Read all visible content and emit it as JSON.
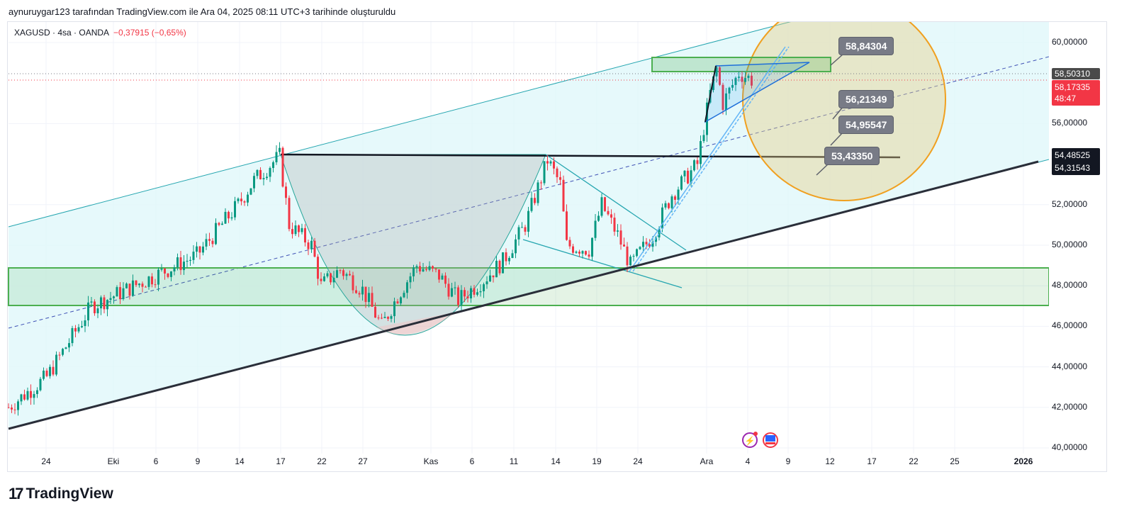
{
  "header": {
    "credit": "aynuruygar123 tarafından TradingView.com ile Ara 04, 2025 08:11 UTC+3 tarihinde oluşturuldu"
  },
  "legend": {
    "symbol": "XAGUSD · 4sa · OANDA",
    "change": "−0,37915 (−0,65%)"
  },
  "price_axis": {
    "ticks": [
      "60,00000",
      "56,00000",
      "52,00000",
      "50,00000",
      "48,00000",
      "46,00000",
      "44,00000",
      "42,00000",
      "40,00000"
    ],
    "tick_values": [
      60,
      56,
      52,
      50,
      48,
      46,
      44,
      42,
      40
    ],
    "labels": {
      "prev": "58,50310",
      "last": "58,17335",
      "countdown": "48:47",
      "line1": "54,48525",
      "line2": "54,31543"
    }
  },
  "time_axis": {
    "ticks": [
      "24",
      "Eki",
      "6",
      "9",
      "14",
      "17",
      "22",
      "27",
      "Kas",
      "6",
      "11",
      "14",
      "19",
      "24",
      "Ara",
      "4",
      "9",
      "12",
      "17",
      "22",
      "25",
      "2026"
    ]
  },
  "callouts": [
    "58,84304",
    "56,21349",
    "54,95547",
    "53,43350"
  ],
  "brand": {
    "name": "TradingView"
  },
  "colors": {
    "up": "#089981",
    "down": "#f23645",
    "channel": "#e0f7fa",
    "zone": "#4caf50",
    "circle": "#f0a020"
  },
  "chart_data": {
    "type": "candlestick",
    "symbol": "XAGUSD",
    "interval": "4h",
    "ylim": [
      40,
      60.8
    ],
    "keypoints_bar_price": [
      [
        0,
        42
      ],
      [
        12,
        43.5
      ],
      [
        26,
        47
      ],
      [
        33,
        47.5
      ],
      [
        46,
        48.5
      ],
      [
        59,
        49.5
      ],
      [
        72,
        52
      ],
      [
        77,
        53.2
      ],
      [
        85,
        54.4
      ],
      [
        88,
        51
      ],
      [
        95,
        50
      ],
      [
        98,
        48
      ],
      [
        104,
        48.8
      ],
      [
        111,
        47.8
      ],
      [
        117,
        46
      ],
      [
        122,
        47.5
      ],
      [
        128,
        49
      ],
      [
        135,
        48.5
      ],
      [
        141,
        47.3
      ],
      [
        149,
        48.3
      ],
      [
        155,
        49.2
      ],
      [
        162,
        51
      ],
      [
        169,
        54.2
      ],
      [
        173,
        53
      ],
      [
        175,
        50
      ],
      [
        182,
        49.8
      ],
      [
        186,
        52
      ],
      [
        191,
        50.5
      ],
      [
        195,
        49
      ],
      [
        202,
        50.5
      ],
      [
        208,
        52.5
      ],
      [
        216,
        54
      ],
      [
        218,
        55.8
      ],
      [
        220,
        57.5
      ],
      [
        222,
        58.7
      ],
      [
        224,
        57
      ],
      [
        229,
        58.5
      ],
      [
        233,
        58.17
      ]
    ]
  }
}
